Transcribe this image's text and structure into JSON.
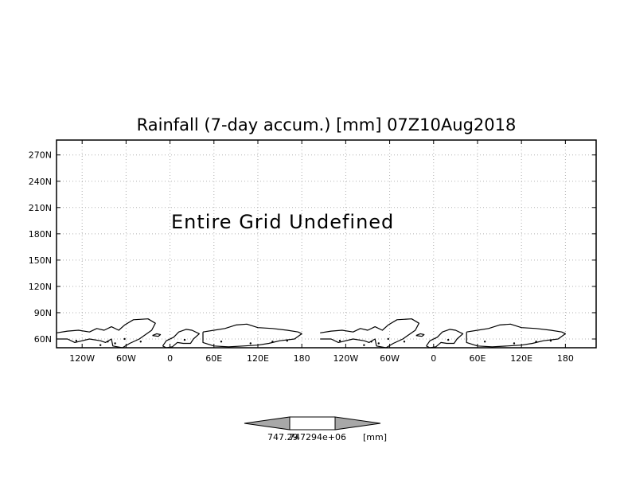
{
  "chart_data": {
    "type": "heatmap",
    "title": "Rainfall (7-day accum.) [mm] 07Z10Aug2018",
    "annotation": "Entire Grid Undefined",
    "xlabel": "",
    "ylabel": "",
    "x_ticks": [
      "120W",
      "60W",
      "0",
      "60E",
      "120E",
      "180",
      "120W",
      "60W",
      "0",
      "60E",
      "120E",
      "180"
    ],
    "y_ticks": [
      "60N",
      "90N",
      "120N",
      "150N",
      "180N",
      "210N",
      "240N",
      "270N"
    ],
    "x_tick_values": [
      -120,
      -60,
      0,
      60,
      120,
      180,
      240,
      300,
      360,
      420,
      480,
      540
    ],
    "y_tick_values": [
      60,
      90,
      120,
      150,
      180,
      210,
      240,
      270
    ],
    "xlim": [
      -155,
      582
    ],
    "ylim": [
      50,
      287
    ],
    "grid": true,
    "values": [],
    "colorbar": {
      "labels": [
        "747.29",
        "747294e+06",
        "[mm]"
      ],
      "fill_color": "#ffffff",
      "arrow_color": "#a8a8a8"
    }
  }
}
